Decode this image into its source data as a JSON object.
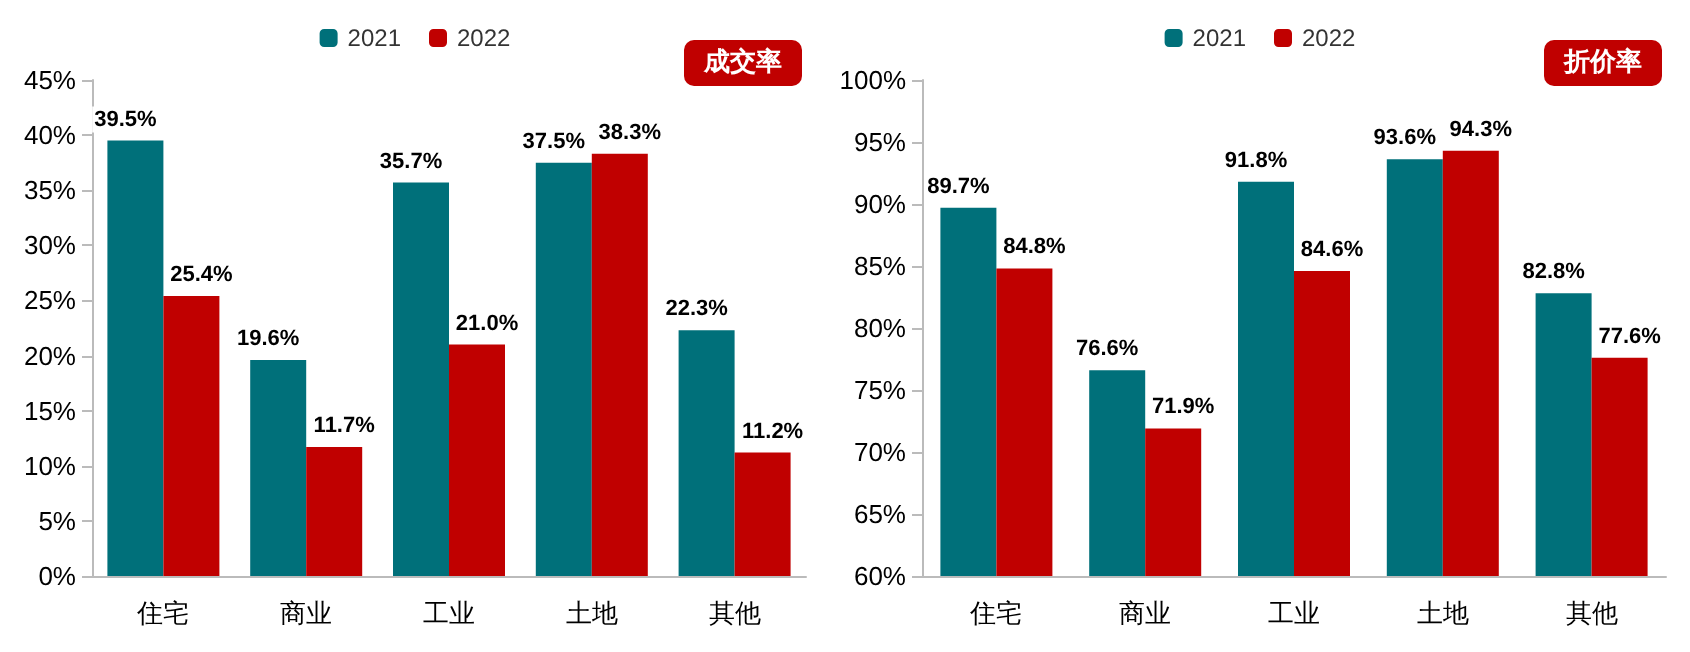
{
  "chart_data": [
    {
      "type": "bar",
      "title": "成交率",
      "categories": [
        "住宅",
        "商业",
        "工业",
        "土地",
        "其他"
      ],
      "series": [
        {
          "name": "2021",
          "color": "#00707a",
          "values": [
            39.5,
            19.6,
            35.7,
            37.5,
            22.3
          ],
          "value_labels": [
            "39.5%",
            "19.6%",
            "35.7%",
            "37.5%",
            "22.3%"
          ]
        },
        {
          "name": "2022",
          "color": "#c00000",
          "values": [
            25.4,
            11.7,
            21.0,
            38.3,
            11.2
          ],
          "value_labels": [
            "25.4%",
            "11.7%",
            "21.0%",
            "38.3%",
            "11.2%"
          ]
        }
      ],
      "ylim": [
        0,
        45
      ],
      "yticks": [
        {
          "value": 0,
          "label": "0%"
        },
        {
          "value": 5,
          "label": "5%"
        },
        {
          "value": 10,
          "label": "10%"
        },
        {
          "value": 15,
          "label": "15%"
        },
        {
          "value": 20,
          "label": "20%"
        },
        {
          "value": 25,
          "label": "25%"
        },
        {
          "value": 30,
          "label": "30%"
        },
        {
          "value": 35,
          "label": "35%"
        },
        {
          "value": 40,
          "label": "40%"
        },
        {
          "value": 45,
          "label": "45%"
        }
      ],
      "grid": false,
      "legend": "top"
    },
    {
      "type": "bar",
      "title": "折价率",
      "categories": [
        "住宅",
        "商业",
        "工业",
        "土地",
        "其他"
      ],
      "series": [
        {
          "name": "2021",
          "color": "#00707a",
          "values": [
            89.7,
            76.6,
            91.8,
            93.6,
            82.8
          ],
          "value_labels": [
            "89.7%",
            "76.6%",
            "91.8%",
            "93.6%",
            "82.8%"
          ]
        },
        {
          "name": "2022",
          "color": "#c00000",
          "values": [
            84.8,
            71.9,
            84.6,
            94.3,
            77.6
          ],
          "value_labels": [
            "84.8%",
            "71.9%",
            "84.6%",
            "94.3%",
            "77.6%"
          ]
        }
      ],
      "ylim": [
        60,
        100
      ],
      "yticks": [
        {
          "value": 60,
          "label": "60%"
        },
        {
          "value": 65,
          "label": "65%"
        },
        {
          "value": 70,
          "label": "70%"
        },
        {
          "value": 75,
          "label": "75%"
        },
        {
          "value": 80,
          "label": "80%"
        },
        {
          "value": 85,
          "label": "85%"
        },
        {
          "value": 90,
          "label": "90%"
        },
        {
          "value": 95,
          "label": "95%"
        },
        {
          "value": 100,
          "label": "100%"
        }
      ],
      "grid": false,
      "legend": "top"
    }
  ]
}
